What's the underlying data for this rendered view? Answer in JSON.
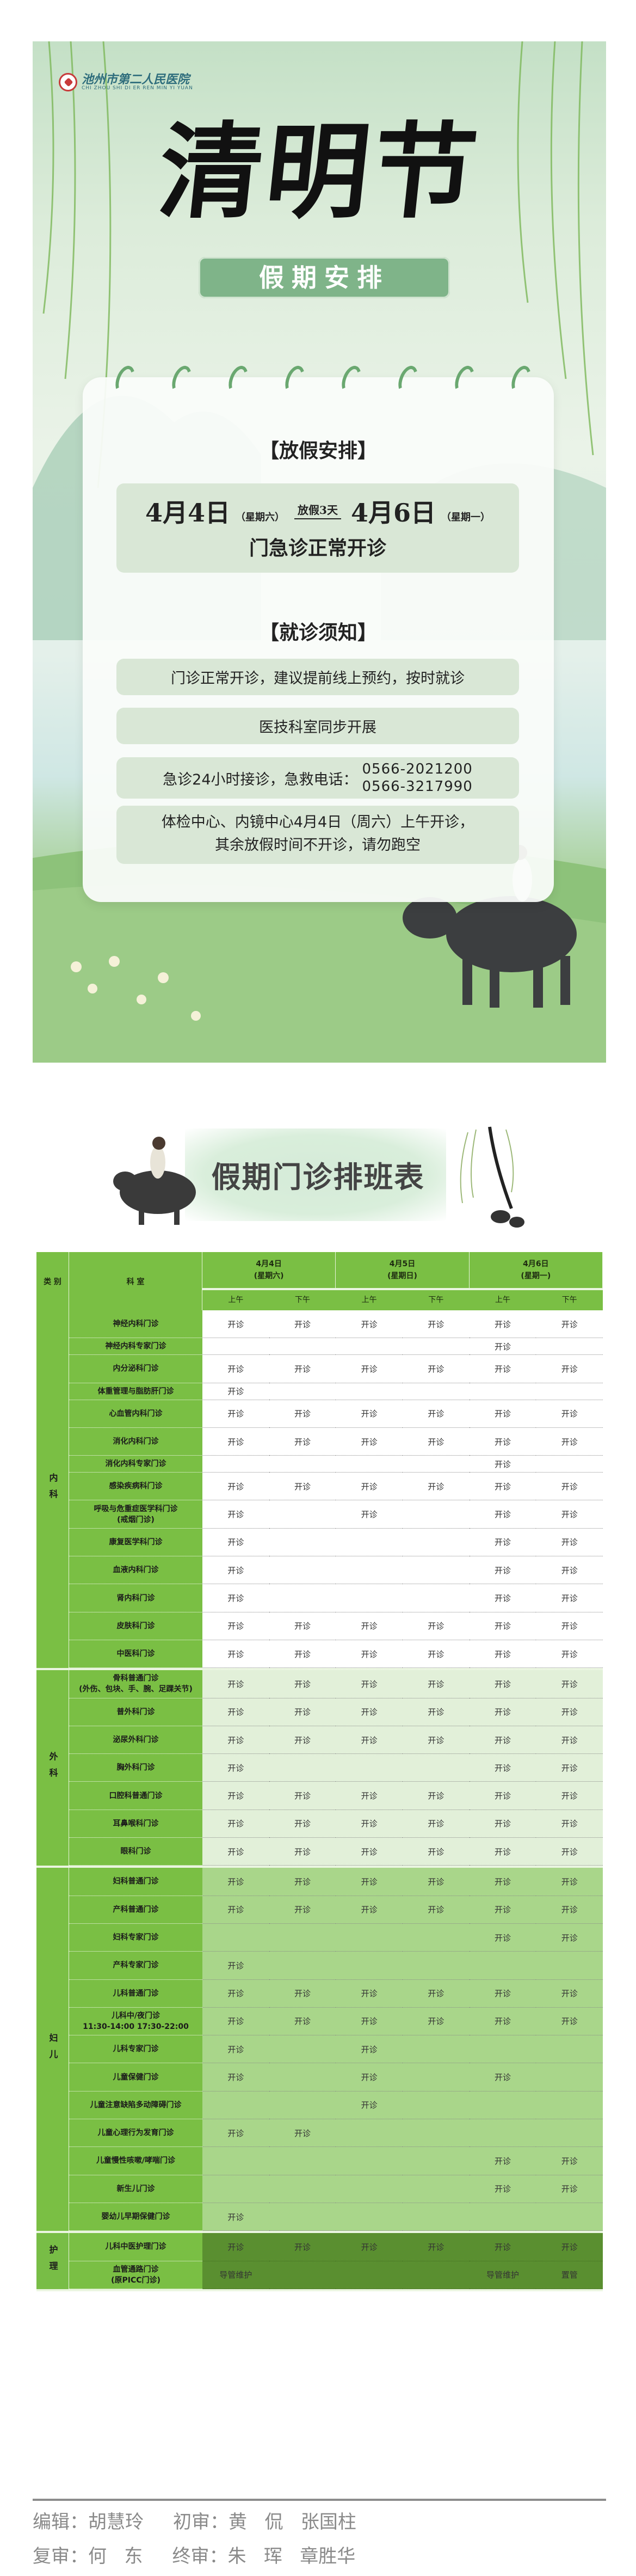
{
  "poster": {
    "hospital_name": "池州市第二人民医院",
    "hospital_name_en": "CHI ZHOU SHI DI ER REN MIN YI YUAN",
    "title": "清明节",
    "subtitle": "假期安排",
    "holiday_heading": "【放假安排】",
    "start_date": "4月4日",
    "start_weekday": "（星期六）",
    "duration": "放假3天",
    "end_date": "4月6日",
    "end_weekday": "（星期一）",
    "status": "门急诊正常开诊",
    "notice_heading": "【就诊须知】",
    "notice_1": "门诊正常开诊，建议提前线上预约，按时就诊",
    "notice_2": "医技科室同步开展",
    "notice_3": "急诊24小时接诊，急救电话：",
    "phone_1": "0566-2021200",
    "phone_2": "0566-3217990",
    "notice_4_line1": "体检中心、内镜中心4月4日（周六）上午开诊，",
    "notice_4_line2": "其余放假时间不开诊，请勿跑空"
  },
  "schedule": {
    "title": "假期门诊排班表",
    "header": {
      "category": "类 别",
      "department": "科 室",
      "days": [
        {
          "date": "4月4日",
          "weekday": "(星期六)"
        },
        {
          "date": "4月5日",
          "weekday": "(星期日)"
        },
        {
          "date": "4月6日",
          "weekday": "(星期一)"
        }
      ],
      "am": "上午",
      "pm": "下午"
    },
    "colors": {
      "header": "#7abf44",
      "neike": "#ffffff",
      "waike": "#e2f0d9",
      "fuer": "#a9d68a",
      "huli": "#5a8f30"
    },
    "groups": [
      {
        "category": "内科",
        "bg": "#ffffff",
        "rows": [
          {
            "dept": "神经内科门诊",
            "short": false,
            "cells": [
              "开诊",
              "开诊",
              "开诊",
              "开诊",
              "开诊",
              "开诊"
            ]
          },
          {
            "dept": "神经内科专家门诊",
            "short": true,
            "cells": [
              "",
              "",
              "",
              "",
              "开诊",
              ""
            ]
          },
          {
            "dept": "内分泌科门诊",
            "short": false,
            "cells": [
              "开诊",
              "开诊",
              "开诊",
              "开诊",
              "开诊",
              "开诊"
            ]
          },
          {
            "dept": "体重管理与脂肪肝门诊",
            "short": true,
            "cells": [
              "开诊",
              "",
              "",
              "",
              "",
              ""
            ]
          },
          {
            "dept": "心血管内科门诊",
            "short": false,
            "cells": [
              "开诊",
              "开诊",
              "开诊",
              "开诊",
              "开诊",
              "开诊"
            ]
          },
          {
            "dept": "消化内科门诊",
            "short": false,
            "cells": [
              "开诊",
              "开诊",
              "开诊",
              "开诊",
              "开诊",
              "开诊"
            ]
          },
          {
            "dept": "消化内科专家门诊",
            "short": true,
            "cells": [
              "",
              "",
              "",
              "",
              "开诊",
              ""
            ]
          },
          {
            "dept": "感染疾病科门诊",
            "short": false,
            "cells": [
              "开诊",
              "开诊",
              "开诊",
              "开诊",
              "开诊",
              "开诊"
            ]
          },
          {
            "dept": "呼吸与危重症医学科门诊\n(戒烟门诊)",
            "short": false,
            "cells": [
              "开诊",
              "",
              "开诊",
              "",
              "开诊",
              "开诊"
            ]
          },
          {
            "dept": "康复医学科门诊",
            "short": false,
            "cells": [
              "开诊",
              "",
              "",
              "",
              "开诊",
              "开诊"
            ]
          },
          {
            "dept": "血液内科门诊",
            "short": false,
            "cells": [
              "开诊",
              "",
              "",
              "",
              "开诊",
              "开诊"
            ]
          },
          {
            "dept": "肾内科门诊",
            "short": false,
            "cells": [
              "开诊",
              "",
              "",
              "",
              "开诊",
              "开诊"
            ]
          },
          {
            "dept": "皮肤科门诊",
            "short": false,
            "cells": [
              "开诊",
              "开诊",
              "开诊",
              "开诊",
              "开诊",
              "开诊"
            ]
          },
          {
            "dept": "中医科门诊",
            "short": false,
            "cells": [
              "开诊",
              "开诊",
              "开诊",
              "开诊",
              "开诊",
              "开诊"
            ]
          }
        ]
      },
      {
        "category": "外科",
        "bg": "#e2f0d9",
        "rows": [
          {
            "dept": "骨科普通门诊\n(外伤、包块、手、腕、足踝关节)",
            "short": false,
            "cells": [
              "开诊",
              "开诊",
              "开诊",
              "开诊",
              "开诊",
              "开诊"
            ]
          },
          {
            "dept": "普外科门诊",
            "short": false,
            "cells": [
              "开诊",
              "开诊",
              "开诊",
              "开诊",
              "开诊",
              "开诊"
            ]
          },
          {
            "dept": "泌尿外科门诊",
            "short": false,
            "cells": [
              "开诊",
              "开诊",
              "开诊",
              "开诊",
              "开诊",
              "开诊"
            ]
          },
          {
            "dept": "胸外科门诊",
            "short": false,
            "cells": [
              "开诊",
              "",
              "",
              "",
              "开诊",
              "开诊"
            ]
          },
          {
            "dept": "口腔科普通门诊",
            "short": false,
            "cells": [
              "开诊",
              "开诊",
              "开诊",
              "开诊",
              "开诊",
              "开诊"
            ]
          },
          {
            "dept": "耳鼻喉科门诊",
            "short": false,
            "cells": [
              "开诊",
              "开诊",
              "开诊",
              "开诊",
              "开诊",
              "开诊"
            ]
          },
          {
            "dept": "眼科门诊",
            "short": false,
            "cells": [
              "开诊",
              "开诊",
              "开诊",
              "开诊",
              "开诊",
              "开诊"
            ]
          }
        ]
      },
      {
        "category": "妇儿",
        "bg": "#a9d68a",
        "rows": [
          {
            "dept": "妇科普通门诊",
            "short": false,
            "cells": [
              "开诊",
              "开诊",
              "开诊",
              "开诊",
              "开诊",
              "开诊"
            ]
          },
          {
            "dept": "产科普通门诊",
            "short": false,
            "cells": [
              "开诊",
              "开诊",
              "开诊",
              "开诊",
              "开诊",
              "开诊"
            ]
          },
          {
            "dept": "妇科专家门诊",
            "short": false,
            "cells": [
              "",
              "",
              "",
              "",
              "开诊",
              "开诊"
            ]
          },
          {
            "dept": "产科专家门诊",
            "short": false,
            "cells": [
              "开诊",
              "",
              "",
              "",
              "",
              ""
            ]
          },
          {
            "dept": "儿科普通门诊",
            "short": false,
            "cells": [
              "开诊",
              "开诊",
              "开诊",
              "开诊",
              "开诊",
              "开诊"
            ]
          },
          {
            "dept": "儿科中/夜门诊\n11:30-14:00   17:30-22:00",
            "short": false,
            "cells": [
              "开诊",
              "开诊",
              "开诊",
              "开诊",
              "开诊",
              "开诊"
            ]
          },
          {
            "dept": "儿科专家门诊",
            "short": false,
            "cells": [
              "开诊",
              "",
              "开诊",
              "",
              "",
              ""
            ]
          },
          {
            "dept": "儿童保健门诊",
            "short": false,
            "cells": [
              "开诊",
              "",
              "开诊",
              "",
              "开诊",
              ""
            ]
          },
          {
            "dept": "儿童注意缺陷多动障碍门诊",
            "short": false,
            "cells": [
              "",
              "",
              "开诊",
              "",
              "",
              ""
            ]
          },
          {
            "dept": "儿童心理行为发育门诊",
            "short": false,
            "cells": [
              "开诊",
              "开诊",
              "",
              "",
              "",
              ""
            ]
          },
          {
            "dept": "儿童慢性咳嗽/哮喘门诊",
            "short": false,
            "cells": [
              "",
              "",
              "",
              "",
              "开诊",
              "开诊"
            ]
          },
          {
            "dept": "新生儿门诊",
            "short": false,
            "cells": [
              "",
              "",
              "",
              "",
              "开诊",
              "开诊"
            ]
          },
          {
            "dept": "婴幼儿早期保健门诊",
            "short": false,
            "cells": [
              "开诊",
              "",
              "",
              "",
              "",
              ""
            ]
          }
        ]
      },
      {
        "category": "护理",
        "bg": "#5a8f30",
        "rows": [
          {
            "dept": "儿科中医护理门诊",
            "short": false,
            "cells": [
              "开诊",
              "开诊",
              "开诊",
              "开诊",
              "开诊",
              "开诊"
            ]
          },
          {
            "dept": "血管通路门诊\n(原PICC门诊)",
            "short": false,
            "cells": [
              "导管维护",
              "",
              "",
              "",
              "导管维护",
              "置管"
            ]
          }
        ]
      }
    ]
  },
  "footer": {
    "line1": "编辑：胡慧玲     初审：黄   侃   张国柱",
    "line2": "复审：何   东     终审：朱   珲   章胜华"
  }
}
